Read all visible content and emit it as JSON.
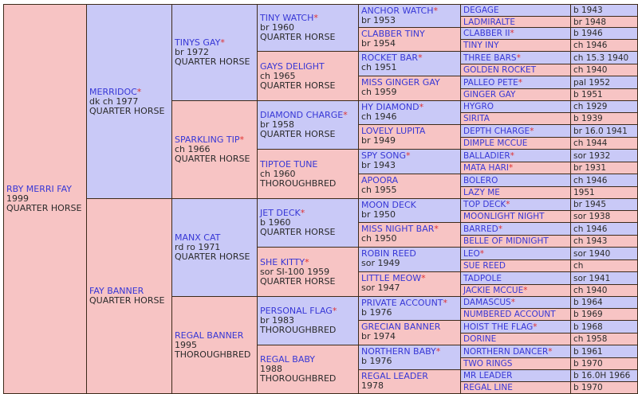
{
  "colors": {
    "male_bg": "#c9c9f7",
    "female_bg": "#f7c4c4",
    "name": "#3737d6",
    "star": "#e03030",
    "border": "#3d2a1a"
  },
  "subject": {
    "name": "RBY MERRI FAY",
    "year": "1999",
    "breed": "QUARTER HORSE"
  },
  "gen1": [
    {
      "name": "MERRIDOC",
      "star": "*",
      "details": [
        "dk ch 1977",
        "QUARTER HORSE"
      ]
    },
    {
      "name": "FAY BANNER",
      "star": "",
      "details": [
        "QUARTER HORSE"
      ]
    }
  ],
  "gen2": [
    {
      "name": "TINYS GAY",
      "star": "*",
      "details": [
        "br 1972",
        "QUARTER HORSE"
      ]
    },
    {
      "name": "SPARKLING TIP",
      "star": "*",
      "details": [
        "ch 1966",
        "QUARTER HORSE"
      ]
    },
    {
      "name": "MANX CAT",
      "star": "",
      "details": [
        "rd ro 1971",
        "QUARTER HORSE"
      ]
    },
    {
      "name": "REGAL BANNER",
      "star": "",
      "details": [
        "1995",
        "THOROUGHBRED"
      ]
    }
  ],
  "gen3": [
    {
      "name": "TINY WATCH",
      "star": "*",
      "details": [
        "br 1960",
        "QUARTER HORSE"
      ]
    },
    {
      "name": "GAYS DELIGHT",
      "star": "",
      "details": [
        "ch 1965",
        "QUARTER HORSE"
      ]
    },
    {
      "name": "DIAMOND CHARGE",
      "star": "*",
      "details": [
        "br 1958",
        "QUARTER HORSE"
      ]
    },
    {
      "name": "TIPTOE TUNE",
      "star": "",
      "details": [
        "ch 1960",
        "THOROUGHBRED"
      ]
    },
    {
      "name": "JET DECK",
      "star": "*",
      "details": [
        "b 1960",
        "QUARTER HORSE"
      ]
    },
    {
      "name": "SHE KITTY",
      "star": "*",
      "details": [
        "sor SI-100 1959",
        "QUARTER HORSE"
      ]
    },
    {
      "name": "PERSONAL FLAG",
      "star": "*",
      "details": [
        "br 1983",
        "THOROUGHBRED"
      ]
    },
    {
      "name": "REGAL BABY",
      "star": "",
      "details": [
        "1988",
        "THOROUGHBRED"
      ]
    }
  ],
  "gen4": [
    {
      "name": "ANCHOR WATCH",
      "star": "*",
      "detail": "br 1953"
    },
    {
      "name": "CLABBER TINY",
      "star": "",
      "detail": "br 1954"
    },
    {
      "name": "ROCKET BAR",
      "star": "*",
      "detail": "ch 1951"
    },
    {
      "name": "MISS GINGER GAY",
      "star": "",
      "detail": "ch 1959"
    },
    {
      "name": "HY DIAMOND",
      "star": "*",
      "detail": "ch 1946"
    },
    {
      "name": "LOVELY LUPITA",
      "star": "",
      "detail": "br 1949"
    },
    {
      "name": "SPY SONG",
      "star": "*",
      "detail": "br 1943"
    },
    {
      "name": "APOORA",
      "star": "",
      "detail": "ch 1955"
    },
    {
      "name": "MOON DECK",
      "star": "",
      "detail": "br 1950"
    },
    {
      "name": "MISS NIGHT BAR",
      "star": "*",
      "detail": "ch 1950"
    },
    {
      "name": "ROBIN REED",
      "star": "",
      "detail": "sor 1949"
    },
    {
      "name": "LITTLE MEOW",
      "star": "*",
      "detail": "sor 1947"
    },
    {
      "name": "PRIVATE ACCOUNT",
      "star": "*",
      "detail": "b 1976"
    },
    {
      "name": "GRECIAN BANNER",
      "star": "",
      "detail": "br 1974"
    },
    {
      "name": "NORTHERN BABY",
      "star": "*",
      "detail": "b 1976"
    },
    {
      "name": "REGAL LEADER",
      "star": "",
      "detail": "1978"
    }
  ],
  "gen5": [
    {
      "name": "DEGAGE",
      "star": "",
      "detail": "b 1943"
    },
    {
      "name": "LADMIRALTE",
      "star": "",
      "detail": "br 1948"
    },
    {
      "name": "CLABBER II",
      "star": "*",
      "detail": "b 1946"
    },
    {
      "name": "TINY INY",
      "star": "",
      "detail": "ch 1946"
    },
    {
      "name": "THREE BARS",
      "star": "*",
      "detail": "ch 15.3 1940"
    },
    {
      "name": "GOLDEN ROCKET",
      "star": "",
      "detail": "ch 1940"
    },
    {
      "name": "PALLEO PETE",
      "star": "*",
      "detail": "pal 1952"
    },
    {
      "name": "GINGER GAY",
      "star": "",
      "detail": "b 1951"
    },
    {
      "name": "HYGRO",
      "star": "",
      "detail": "ch 1929"
    },
    {
      "name": "SIRITA",
      "star": "",
      "detail": "b 1939"
    },
    {
      "name": "DEPTH CHARGE",
      "star": "*",
      "detail": "br 16.0 1941"
    },
    {
      "name": "DIMPLE MCCUE",
      "star": "",
      "detail": "ch 1944"
    },
    {
      "name": "BALLADIER",
      "star": "*",
      "detail": "sor 1932"
    },
    {
      "name": "MATA HARI",
      "star": "*",
      "detail": "br 1931"
    },
    {
      "name": "BOLERO",
      "star": "",
      "detail": "ch 1946"
    },
    {
      "name": "LAZY ME",
      "star": "",
      "detail": "1951"
    },
    {
      "name": "TOP DECK",
      "star": "*",
      "detail": "br 1945"
    },
    {
      "name": "MOONLIGHT NIGHT",
      "star": "",
      "detail": "sor 1938"
    },
    {
      "name": "BARRED",
      "star": "*",
      "detail": "ch 1946"
    },
    {
      "name": "BELLE OF MIDNIGHT",
      "star": "",
      "detail": "ch 1943"
    },
    {
      "name": "LEO",
      "star": "*",
      "detail": "sor 1940"
    },
    {
      "name": "SUE REED",
      "star": "",
      "detail": "ch"
    },
    {
      "name": "TADPOLE",
      "star": "",
      "detail": "sor 1941"
    },
    {
      "name": "JACKIE MCCUE",
      "star": "*",
      "detail": "ch 1940"
    },
    {
      "name": "DAMASCUS",
      "star": "*",
      "detail": "b 1964"
    },
    {
      "name": "NUMBERED ACCOUNT",
      "star": "",
      "detail": "b 1969"
    },
    {
      "name": "HOIST THE FLAG",
      "star": "*",
      "detail": "b 1968"
    },
    {
      "name": "DORINE",
      "star": "",
      "detail": "ch 1958"
    },
    {
      "name": "NORTHERN DANCER",
      "star": "*",
      "detail": "b 1961"
    },
    {
      "name": "TWO RINGS",
      "star": "",
      "detail": "b 1970"
    },
    {
      "name": "MR LEADER",
      "star": "",
      "detail": "b 16.0H 1966"
    },
    {
      "name": "REGAL LINE",
      "star": "",
      "detail": "b 1970"
    }
  ]
}
